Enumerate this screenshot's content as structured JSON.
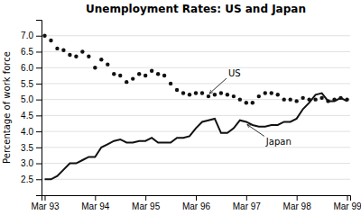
{
  "chart_data": {
    "type": "line",
    "title": "Unemployment Rates: US and Japan",
    "y_label": "Percentage of work force",
    "categories": [
      "Mar 93",
      null,
      null,
      null,
      null,
      null,
      null,
      null,
      "Mar 94",
      null,
      null,
      null,
      null,
      null,
      null,
      null,
      "Mar 95",
      null,
      null,
      null,
      null,
      null,
      null,
      null,
      "Mar 96",
      null,
      null,
      null,
      null,
      null,
      null,
      null,
      "Mar 97",
      null,
      null,
      null,
      null,
      null,
      null,
      null,
      "Mar 98",
      null,
      null,
      null,
      null,
      null,
      null,
      null,
      "Mar 99"
    ],
    "series": [
      {
        "color": "#111111",
        "marker": "dot",
        "line_style": "none",
        "values": [
          7.0,
          6.85,
          6.6,
          6.55,
          6.4,
          6.35,
          6.5,
          6.35,
          6.0,
          6.25,
          6.1,
          5.8,
          5.75,
          5.55,
          5.65,
          5.8,
          5.75,
          5.9,
          5.8,
          5.75,
          5.5,
          5.3,
          5.2,
          5.15,
          5.2,
          5.2,
          5.1,
          5.15,
          5.2,
          5.15,
          5.1,
          5.0,
          4.9,
          4.9,
          5.1,
          5.2,
          5.2,
          5.15,
          5.0,
          5.0,
          4.95,
          5.05,
          5.0,
          5.0,
          5.05,
          4.95,
          5.0,
          5.05,
          5.0
        ]
      },
      {
        "color": "#111111",
        "marker": "none",
        "line_style": "solid",
        "values": [
          2.5,
          2.5,
          2.6,
          2.8,
          3.0,
          3.0,
          3.1,
          3.2,
          3.2,
          3.5,
          3.6,
          3.7,
          3.75,
          3.65,
          3.65,
          3.7,
          3.7,
          3.8,
          3.65,
          3.65,
          3.65,
          3.8,
          3.8,
          3.85,
          4.1,
          4.3,
          4.35,
          4.4,
          3.95,
          3.95,
          4.1,
          4.35,
          4.3,
          4.2,
          4.15,
          4.15,
          4.2,
          4.2,
          4.3,
          4.3,
          4.4,
          4.7,
          4.9,
          5.15,
          5.2,
          4.95,
          4.95,
          5.05,
          4.95
        ]
      }
    ],
    "annotations": [
      {
        "text": "US",
        "series": 0,
        "index": 26
      },
      {
        "text": "Japan",
        "series": 1,
        "index": 32
      }
    ],
    "ylim": [
      2.0,
      7.5
    ],
    "yticks": [
      2.5,
      {
        "value": 3.0,
        "label": "3.0"
      },
      3.5,
      {
        "value": 4.0,
        "label": "4.0"
      },
      4.5,
      {
        "value": 5.0,
        "label": "5.0"
      },
      5.5,
      {
        "value": 6.0,
        "label": "6.0"
      },
      6.5,
      {
        "value": 7.0,
        "label": "7.0"
      }
    ],
    "grid": true
  }
}
